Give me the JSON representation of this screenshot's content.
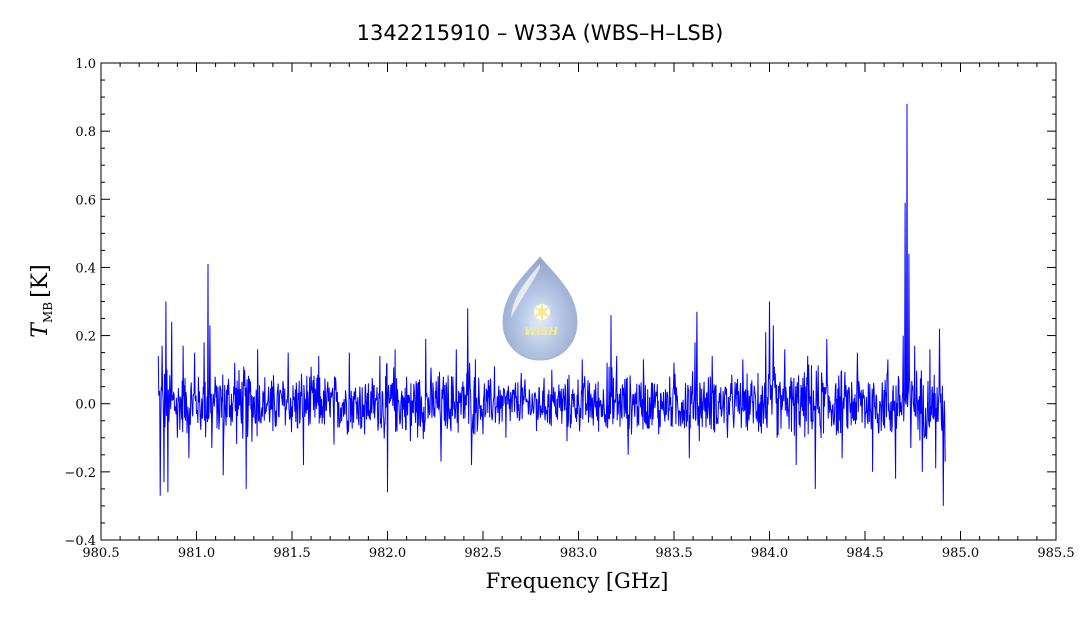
{
  "chart_data": {
    "type": "line",
    "title": "1342215910 – W33A (WBS–H–LSB)",
    "xlabel": "Frequency [GHz]",
    "ylabel_main": "T",
    "ylabel_sub": "MB",
    "ylabel_unit": "[K]",
    "xlim": [
      980.5,
      985.5
    ],
    "ylim": [
      -0.4,
      1.0
    ],
    "x_ticks": [
      980.5,
      981.0,
      981.5,
      982.0,
      982.5,
      983.0,
      983.5,
      984.0,
      984.5,
      985.0,
      985.5
    ],
    "x_tick_labels": [
      "980.5",
      "981.0",
      "981.5",
      "982.0",
      "982.5",
      "983.0",
      "983.5",
      "984.0",
      "984.5",
      "985.0",
      "985.5"
    ],
    "y_ticks": [
      -0.4,
      -0.2,
      0.0,
      0.2,
      0.4,
      0.6,
      0.8,
      1.0
    ],
    "y_tick_labels": [
      "−0.4",
      "−0.2",
      "0.0",
      "0.2",
      "0.4",
      "0.6",
      "0.8",
      "1.0"
    ],
    "grid": false,
    "series": [
      {
        "color": "#0000ff",
        "x": [
          980.8,
          980.81,
          980.82,
          980.83,
          980.84,
          980.85,
          980.87,
          980.9,
          980.93,
          980.96,
          980.99,
          981.02,
          981.04,
          981.06,
          981.07,
          981.08,
          981.1,
          981.14,
          981.2,
          981.26,
          981.32,
          981.4,
          981.48,
          981.56,
          981.64,
          981.72,
          981.8,
          981.88,
          981.96,
          982.0,
          982.04,
          982.12,
          982.2,
          982.28,
          982.36,
          982.4,
          982.42,
          982.43,
          982.44,
          982.46,
          982.5,
          982.56,
          982.62,
          982.7,
          982.78,
          982.86,
          982.94,
          983.02,
          983.1,
          983.15,
          983.17,
          983.18,
          983.2,
          983.26,
          983.34,
          983.42,
          983.5,
          983.58,
          983.61,
          983.62,
          983.64,
          983.7,
          983.78,
          983.86,
          983.94,
          983.98,
          984.0,
          984.01,
          984.02,
          984.04,
          984.08,
          984.14,
          984.2,
          984.24,
          984.3,
          984.38,
          984.46,
          984.54,
          984.62,
          984.66,
          984.7,
          984.71,
          984.72,
          984.73,
          984.74,
          984.76,
          984.8,
          984.84,
          984.87,
          984.89,
          984.9,
          984.91,
          984.92
        ],
        "y": [
          0.14,
          -0.27,
          0.17,
          -0.23,
          0.3,
          -0.26,
          0.24,
          -0.1,
          0.17,
          -0.16,
          0.15,
          -0.05,
          0.18,
          0.41,
          0.23,
          -0.13,
          0.05,
          -0.21,
          0.12,
          -0.25,
          0.16,
          -0.08,
          0.15,
          -0.18,
          0.14,
          -0.12,
          0.15,
          -0.09,
          0.14,
          -0.26,
          0.16,
          -0.11,
          0.19,
          -0.17,
          0.16,
          0.05,
          0.28,
          0.12,
          -0.18,
          0.13,
          -0.09,
          0.11,
          -0.1,
          0.09,
          -0.08,
          0.1,
          -0.11,
          0.13,
          -0.05,
          0.12,
          0.26,
          -0.06,
          0.14,
          -0.15,
          0.13,
          -0.09,
          0.12,
          -0.16,
          0.18,
          0.27,
          -0.03,
          0.14,
          -0.1,
          0.13,
          0.09,
          0.21,
          0.3,
          0.05,
          0.23,
          -0.1,
          0.16,
          -0.18,
          0.14,
          -0.25,
          0.19,
          -0.16,
          0.15,
          -0.2,
          0.13,
          -0.22,
          0.2,
          0.59,
          0.88,
          0.44,
          -0.13,
          0.17,
          -0.2,
          0.16,
          -0.19,
          0.22,
          -0.06,
          -0.3,
          -0.17
        ]
      }
    ],
    "watermark": "WISH"
  }
}
